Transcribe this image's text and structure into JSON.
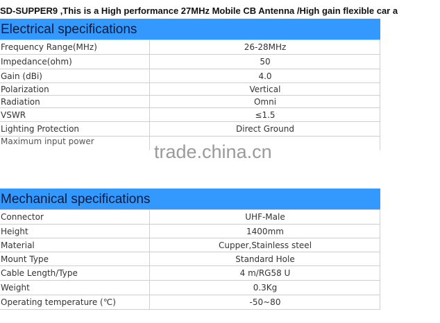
{
  "title": "SD-SUPPER9 ,This is a High performance 27MHz Mobile CB Antenna /High gain flexible car a",
  "electrical": {
    "heading": "Electrical specifications",
    "rows": [
      {
        "k": "Frequency Range(MHz)",
        "v": "26-28MHz"
      },
      {
        "k": "Impedance(ohm)",
        "v": "50"
      },
      {
        "k": "Gain (dBi)",
        "v": "4.0"
      },
      {
        "k": "Polarization",
        "v": "Vertical"
      },
      {
        "k": "Radiation",
        "v": "Omni"
      },
      {
        "k": "VSWR",
        "v": "≤1.5"
      },
      {
        "k": "Lighting Protection",
        "v": "Direct Ground"
      },
      {
        "k": "Maximum input power",
        "v": ""
      }
    ]
  },
  "watermark": "trade.china.cn",
  "mechanical": {
    "heading": "Mechanical specifications",
    "rows": [
      {
        "k": "Connector",
        "v": "UHF-Male"
      },
      {
        "k": "Height",
        "v": "1400mm"
      },
      {
        "k": "Material",
        "v": "Cupper,Stainless steel"
      },
      {
        "k": "Mount Type",
        "v": "Standard Hole"
      },
      {
        "k": "Cable Length/Type",
        "v": "4 m/RG58 U"
      },
      {
        "k": "Weight",
        "v": "0.3Kg"
      },
      {
        "k": "Operating temperature (℃)",
        "v": "-50~80"
      }
    ]
  }
}
